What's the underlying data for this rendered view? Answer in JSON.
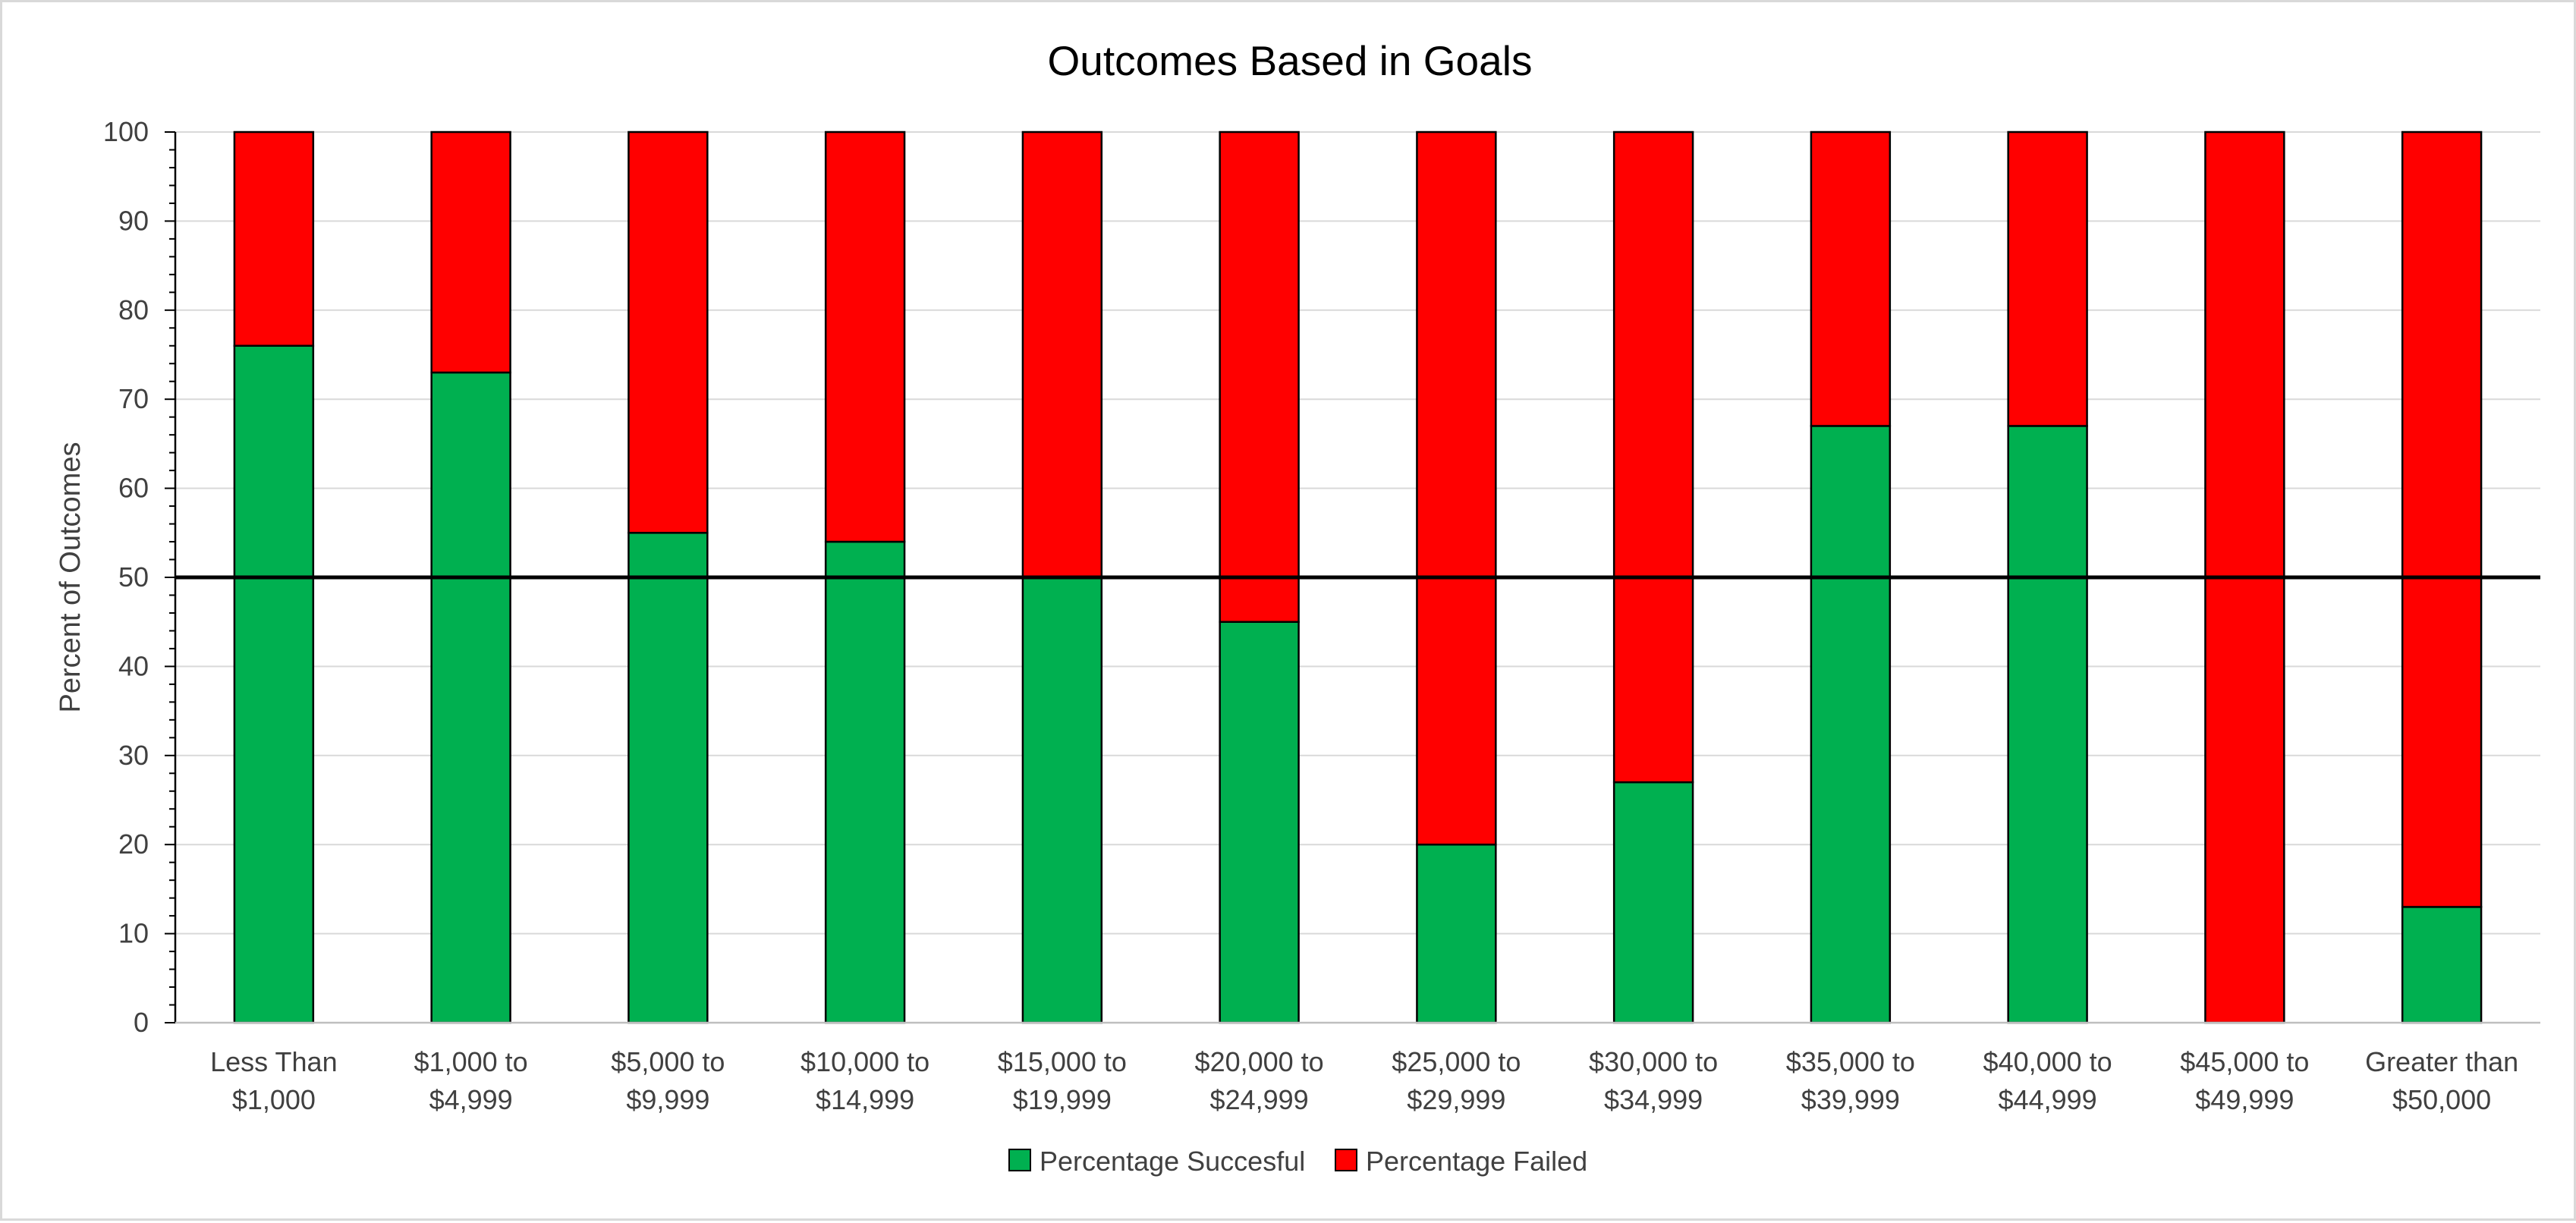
{
  "chart_data": {
    "type": "bar",
    "stacked": true,
    "title": "Outcomes Based in Goals",
    "xlabel": "",
    "ylabel": "Percent of Outcomes",
    "ylim": [
      0,
      100
    ],
    "yticks": [
      0,
      10,
      20,
      30,
      40,
      50,
      60,
      70,
      80,
      90,
      100
    ],
    "grid": true,
    "reference_line": 50,
    "legend_position": "bottom",
    "categories": [
      [
        "Less Than",
        "$1,000"
      ],
      [
        "$1,000 to",
        "$4,999"
      ],
      [
        "$5,000 to",
        "$9,999"
      ],
      [
        "$10,000 to",
        "$14,999"
      ],
      [
        "$15,000 to",
        "$19,999"
      ],
      [
        "$20,000 to",
        "$24,999"
      ],
      [
        "$25,000 to",
        "$29,999"
      ],
      [
        "$30,000 to",
        "$34,999"
      ],
      [
        "$35,000 to",
        "$39,999"
      ],
      [
        "$40,000 to",
        "$44,999"
      ],
      [
        "$45,000 to",
        "$49,999"
      ],
      [
        "Greater than",
        "$50,000"
      ]
    ],
    "series": [
      {
        "name": "Percentage Succesful",
        "color": "#00b050",
        "values": [
          76,
          73,
          55,
          54,
          50,
          45,
          20,
          27,
          67,
          67,
          0,
          13
        ]
      },
      {
        "name": "Percentage Failed",
        "color": "#ff0000",
        "values": [
          24,
          27,
          45,
          46,
          50,
          55,
          80,
          73,
          33,
          33,
          100,
          87
        ]
      }
    ]
  }
}
